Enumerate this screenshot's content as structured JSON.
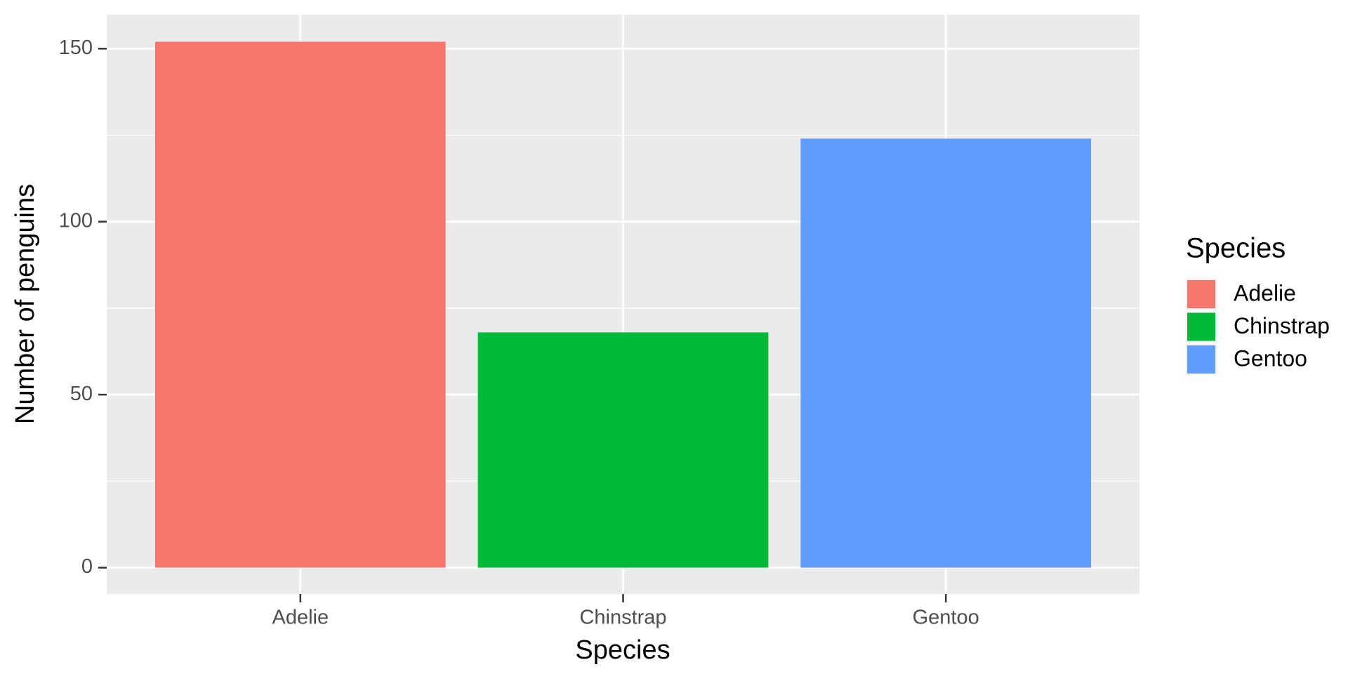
{
  "chart_data": {
    "type": "bar",
    "x_label": "Species",
    "y_label": "Number of penguins",
    "categories": [
      "Adelie",
      "Chinstrap",
      "Gentoo"
    ],
    "values": [
      152,
      68,
      124
    ],
    "colors": [
      "#F8766D",
      "#00BA38",
      "#619CFF"
    ],
    "ylim": [
      -7.6,
      159.8
    ],
    "yticks": [
      0,
      50,
      100,
      150
    ],
    "minor_yticks": [
      25,
      75,
      125
    ],
    "grid": true,
    "legend": {
      "title": "Species",
      "position": "right"
    }
  }
}
